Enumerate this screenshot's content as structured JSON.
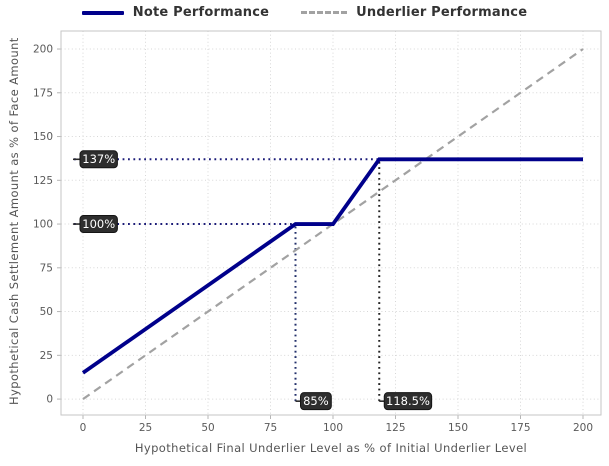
{
  "chart_data": {
    "type": "line",
    "title": "",
    "xlabel": "Hypothetical Final Underlier Level as % of Initial Underlier Level",
    "ylabel": "Hypothetical Cash Settlement Amount as % of Face Amount",
    "xlim": [
      -8.8,
      207.2
    ],
    "ylim": [
      -9.1,
      210.3
    ],
    "xticks": [
      0,
      25,
      50,
      75,
      100,
      125,
      150,
      175,
      200
    ],
    "yticks": [
      0,
      25,
      50,
      75,
      100,
      125,
      150,
      175,
      200
    ],
    "grid": true,
    "legend_position": "top-center",
    "series": [
      {
        "name": "Note Performance",
        "color": "#00008B",
        "width": 3.8,
        "dash": null,
        "points": [
          [
            0,
            15
          ],
          [
            85,
            100
          ],
          [
            100,
            100
          ],
          [
            118.5,
            137
          ],
          [
            200,
            137
          ]
        ]
      },
      {
        "name": "Underlier Performance",
        "color": "#a2a2a2",
        "width": 2.2,
        "dash": "8 5.5",
        "points": [
          [
            0,
            0
          ],
          [
            200,
            200
          ]
        ]
      }
    ],
    "annotations": [
      {
        "axis": "y",
        "value": 137,
        "extent": 118.5,
        "label": "137%",
        "color": "#1b1b78"
      },
      {
        "axis": "y",
        "value": 100,
        "extent": 85,
        "label": "100%",
        "color": "#1b1b78"
      },
      {
        "axis": "x",
        "value": 85,
        "extent": 100,
        "label": "85%",
        "color": "#23306b"
      },
      {
        "axis": "x",
        "value": 118.5,
        "extent": 137,
        "label": "118.5%",
        "color": "#222222"
      }
    ],
    "colors": {
      "grid": "#d7d7d7",
      "border": "#c6c6c6",
      "tick": "#b5b5b5",
      "tick_text": "#5a5a5a",
      "box_bg": "#2e2e2e",
      "box_border": "#151515",
      "box_text": "#ffffff",
      "leader": "#2a2a2a"
    }
  }
}
